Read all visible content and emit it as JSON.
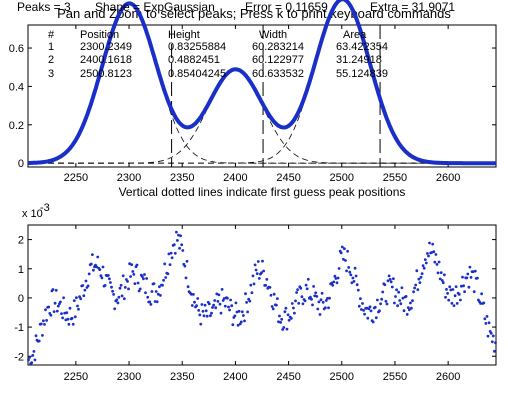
{
  "top_plot": {
    "title": "Pan and Zoom to select peaks; Press k to print keyboard commands",
    "table_headers": [
      "#",
      "Position",
      "Height",
      "Width",
      "Area"
    ],
    "table_rows": [
      [
        "1",
        "2300.2349",
        "0.83255884",
        "60.283214",
        "63.422354"
      ],
      [
        "2",
        "2400.1618",
        "0.4882451",
        "60.122977",
        "31.24918"
      ],
      [
        "3",
        "2500.8123",
        "0.85404245",
        "60.633532",
        "55.124839"
      ]
    ],
    "caption": "Vertical dotted lines indicate first guess peak positions",
    "line_color": "#1a2fc9"
  },
  "bottom_plot": {
    "exponent_label": "x 10",
    "exponent_power": "-3",
    "status": {
      "peaks": "Peaks = 3",
      "shape": "Shape = ExpGaussian",
      "error": "Error = 0.11659",
      "extra": "Extra = 31.9071"
    },
    "marker_color": "#1a2fc9"
  },
  "chart_data": [
    {
      "type": "line",
      "x_range": [
        2205,
        2645
      ],
      "ylim": [
        -0.02,
        0.72
      ],
      "x_ticks": [
        2250,
        2300,
        2350,
        2400,
        2450,
        2500,
        2550,
        2600
      ],
      "y_ticks": [
        0,
        0.2,
        0.4,
        0.6
      ],
      "y_tick_labels": [
        "0",
        "0.2",
        "0.4",
        "0.6"
      ],
      "guess_lines_x": [
        2340,
        2426,
        2536
      ],
      "components": [
        {
          "position": 2300.2349,
          "height": 0.83255884,
          "width": 60.283214
        },
        {
          "position": 2400.1618,
          "height": 0.4882451,
          "width": 60.122977
        },
        {
          "position": 2500.8123,
          "height": 0.85404245,
          "width": 60.633532
        }
      ]
    },
    {
      "type": "scatter",
      "x_range": [
        2205,
        2645
      ],
      "ylim": [
        -2.3,
        2.5
      ],
      "x_ticks": [
        2250,
        2300,
        2350,
        2400,
        2450,
        2500,
        2550,
        2600
      ],
      "y_ticks": [
        -2,
        -1,
        0,
        1,
        2
      ],
      "y_tick_labels": [
        "-2",
        "-1",
        "0",
        "1",
        "2"
      ],
      "residual_envelope_x": [
        2205,
        2240,
        2275,
        2310,
        2345,
        2380,
        2420,
        2460,
        2500,
        2540,
        2580,
        2620,
        2645
      ],
      "residual_envelope_y": [
        -1.6,
        -0.2,
        0.8,
        0.2,
        1.5,
        -0.9,
        0.5,
        -0.5,
        0.9,
        -0.4,
        1.1,
        0.3,
        -1.0
      ]
    }
  ]
}
